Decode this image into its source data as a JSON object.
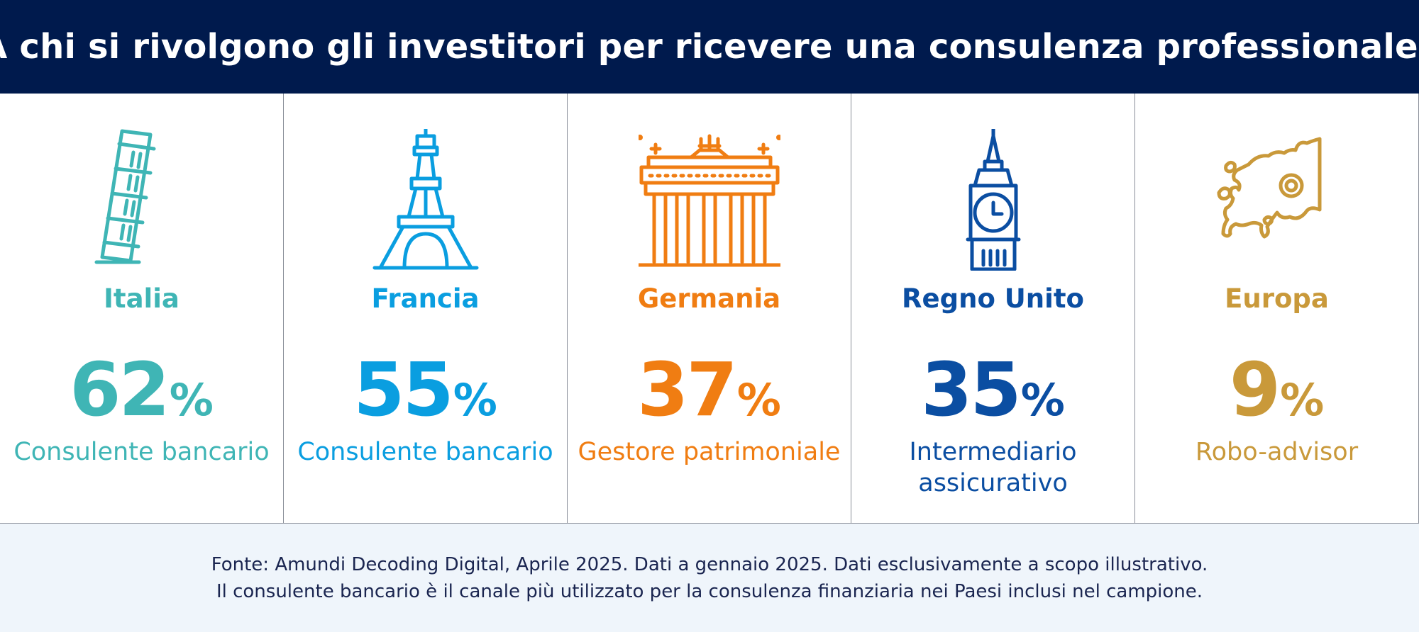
{
  "header": {
    "title": "A chi si rivolgono gli investitori per ricevere una consulenza professionale?"
  },
  "columns": [
    {
      "country": "Italia",
      "value": "62",
      "unit": "%",
      "label": "Consulente bancario",
      "color": "#3fb5b5",
      "icon": "leaning-tower-of-pisa-icon"
    },
    {
      "country": "Francia",
      "value": "55",
      "unit": "%",
      "label": "Consulente bancario",
      "color": "#0a9ee0",
      "icon": "eiffel-tower-icon"
    },
    {
      "country": "Germania",
      "value": "37",
      "unit": "%",
      "label": "Gestore patrimoniale",
      "color": "#f07d12",
      "icon": "brandenburg-gate-icon"
    },
    {
      "country": "Regno Unito",
      "value": "35",
      "unit": "%",
      "label": "Intermediario assicurativo",
      "color": "#0b4ea2",
      "icon": "big-ben-icon"
    },
    {
      "country": "Europa",
      "value": "9",
      "unit": "%",
      "label": "Robo-advisor",
      "color": "#c9993a",
      "icon": "europe-map-icon"
    }
  ],
  "footer": {
    "line1": "Fonte: Amundi Decoding Digital, Aprile 2025. Dati a gennaio 2025. Dati esclusivamente a scopo illustrativo.",
    "line2": "Il consulente bancario è il canale più utilizzato per la consulenza finanziaria nei Paesi inclusi nel campione."
  }
}
